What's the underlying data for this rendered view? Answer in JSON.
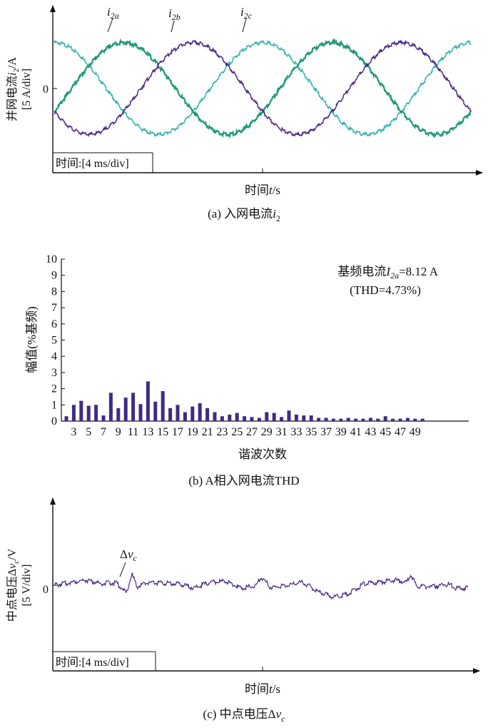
{
  "colors": {
    "phase_a": "#35b3b0",
    "phase_b": "#1f9a78",
    "phase_c": "#4b2a86",
    "bar": "#3f2b86",
    "axis": "#111111",
    "text": "#111111"
  },
  "panel_a": {
    "caption": "(a) 入网电流i2",
    "xlabel": "时间t/s",
    "ylabel_line1": "并网电流i2/A",
    "ylabel_line2": "[5 A/div]",
    "zero_label": "0",
    "timescale": "时间:[4 ms/div]",
    "trace_labels": [
      "i2a",
      "i2b",
      "i2c"
    ]
  },
  "panel_b": {
    "caption": "(b) A相入网电流THD",
    "xlabel": "谐波次数",
    "ylabel": "幅值(%基频)",
    "annotation_line1": "基频电流I2a=8.12 A",
    "annotation_line2": "(THD=4.73%)",
    "yticks": [
      "0",
      "1",
      "2",
      "3",
      "4",
      "5",
      "6",
      "7",
      "8",
      "9",
      "10"
    ],
    "xticks": [
      "3",
      "5",
      "7",
      "9",
      "11",
      "13",
      "15",
      "17",
      "19",
      "21",
      "23",
      "25",
      "27",
      "29",
      "31",
      "33",
      "35",
      "37",
      "39",
      "41",
      "43",
      "45",
      "47",
      "49"
    ]
  },
  "panel_c": {
    "caption": "(c) 中点电压Δvc",
    "xlabel": "时间t/s",
    "ylabel_line1": "中点电压Δvc/V",
    "ylabel_line2": "[5 V/div]",
    "zero_label": "0",
    "timescale": "时间:[4 ms/div]",
    "trace_label": "Δvc"
  },
  "chart_data": [
    {
      "type": "line",
      "title": "(a) 入网电流i2",
      "xlabel": "时间t/s",
      "ylabel": "并网电流i2/A [5 A/div]",
      "x_unit": "ms",
      "y_unit": "A",
      "xlim": [
        0,
        40
      ],
      "amplitude_A": 11.5,
      "fundamental_frequency_Hz": 50,
      "series": [
        {
          "name": "i2a",
          "phase_deg": 90
        },
        {
          "name": "i2b",
          "phase_deg": -30
        },
        {
          "name": "i2c",
          "phase_deg": 210
        }
      ],
      "grid": false
    },
    {
      "type": "bar",
      "title": "(b) A相入网电流THD",
      "xlabel": "谐波次数",
      "ylabel": "幅值(%基频)",
      "ylim": [
        0,
        10
      ],
      "categories": [
        2,
        3,
        4,
        5,
        6,
        7,
        8,
        9,
        10,
        11,
        12,
        13,
        14,
        15,
        16,
        17,
        18,
        19,
        20,
        21,
        22,
        23,
        24,
        25,
        26,
        27,
        28,
        29,
        30,
        31,
        32,
        33,
        34,
        35,
        36,
        37,
        38,
        39,
        40,
        41,
        42,
        43,
        44,
        45,
        46,
        47,
        48,
        49,
        50
      ],
      "values": [
        0.3,
        1.0,
        1.25,
        0.95,
        1.0,
        0.35,
        1.75,
        0.8,
        1.45,
        1.75,
        1.05,
        2.45,
        1.2,
        1.85,
        0.8,
        1.0,
        0.55,
        0.9,
        1.1,
        0.8,
        0.55,
        0.3,
        0.4,
        0.5,
        0.3,
        0.25,
        0.2,
        0.55,
        0.5,
        0.25,
        0.65,
        0.4,
        0.35,
        0.35,
        0.2,
        0.2,
        0.15,
        0.15,
        0.2,
        0.15,
        0.15,
        0.2,
        0.15,
        0.3,
        0.15,
        0.15,
        0.2,
        0.15,
        0.15
      ],
      "annotations": [
        "基频电流I2a=8.12 A",
        "(THD=4.73%)"
      ],
      "grid": false
    },
    {
      "type": "line",
      "title": "(c) 中点电压Δvc",
      "xlabel": "时间t/s",
      "ylabel": "中点电压Δvc/V [5 V/div]",
      "x_unit": "ms",
      "y_unit": "V",
      "xlim": [
        0,
        40
      ],
      "series": [
        {
          "name": "Δvc",
          "x": [
            0,
            1.5,
            3,
            4.5,
            6,
            7,
            7.5,
            8,
            9,
            10.5,
            12,
            13.5,
            15,
            16.5,
            18,
            19.5,
            20,
            21,
            22.5,
            24,
            25.5,
            27,
            28.5,
            30,
            31.5,
            33,
            34,
            34.5,
            35,
            36.5,
            38,
            39,
            40
          ],
          "y": [
            0,
            0.5,
            1.0,
            0.3,
            0.5,
            -1.5,
            2.2,
            -0.3,
            0.5,
            0.4,
            0.3,
            -0.5,
            0.5,
            0.8,
            -0.5,
            -0.2,
            1.5,
            -0.5,
            0,
            0.6,
            -1.2,
            -2.2,
            -1.5,
            0.3,
            0.5,
            1.0,
            0.5,
            2.0,
            -0.2,
            -0.3,
            0.2,
            -0.6,
            -0.5
          ]
        }
      ],
      "grid": false
    }
  ]
}
